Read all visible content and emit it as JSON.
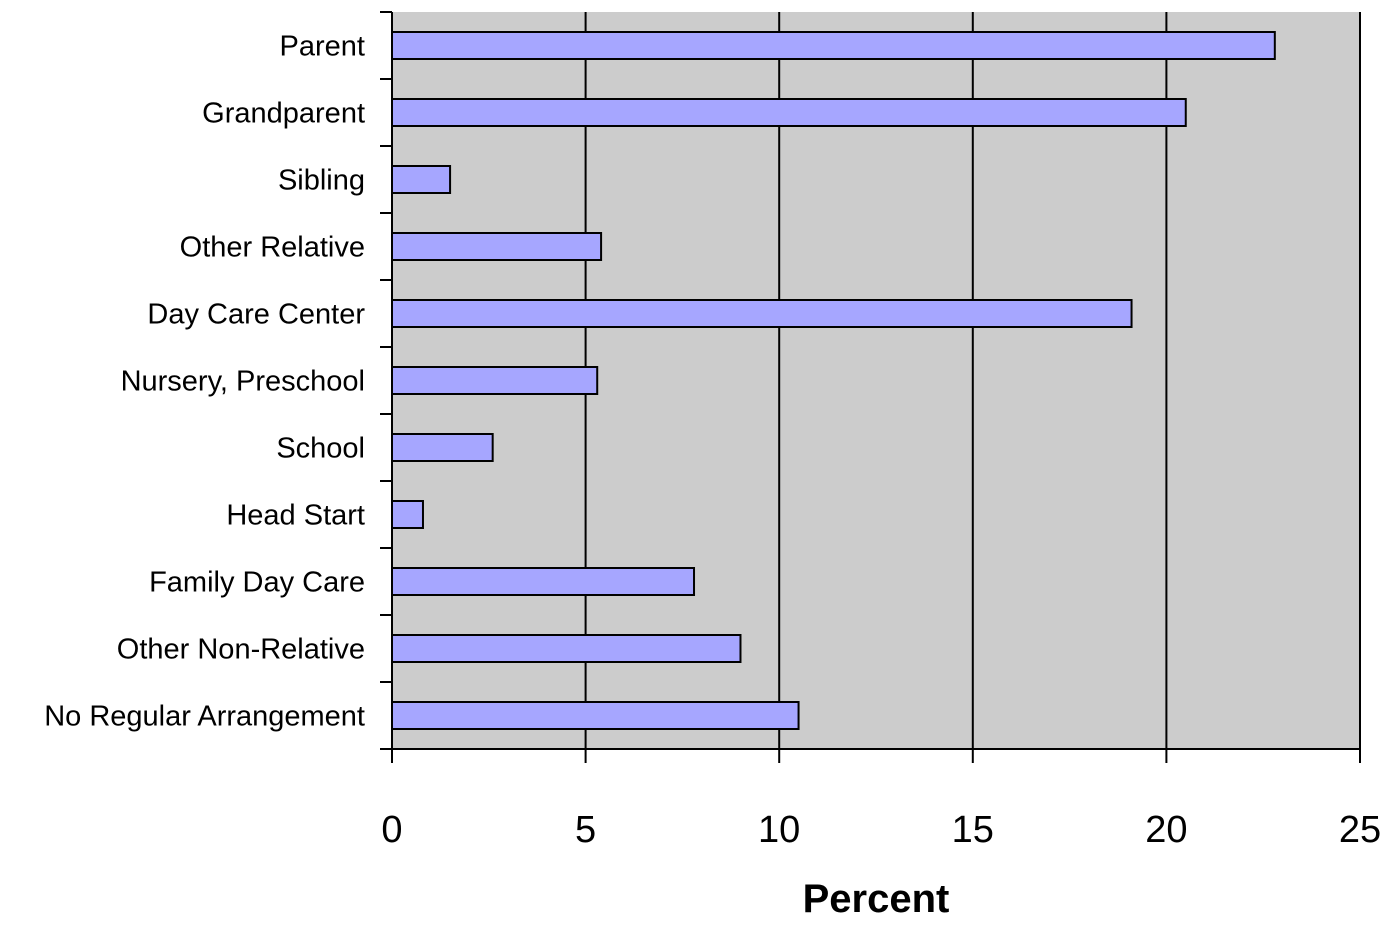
{
  "chart_data": {
    "type": "bar",
    "orientation": "horizontal",
    "categories": [
      "Parent",
      "Grandparent",
      "Sibling",
      "Other Relative",
      "Day Care Center",
      "Nursery, Preschool",
      "School",
      "Head Start",
      "Family Day Care",
      "Other Non-Relative",
      "No Regular Arrangement"
    ],
    "values": [
      22.8,
      20.5,
      1.5,
      5.4,
      19.1,
      5.3,
      2.6,
      0.8,
      7.8,
      9.0,
      10.5
    ],
    "xlabel": "Percent",
    "ylabel": "",
    "xlim": [
      0,
      25
    ],
    "xticks": [
      "0",
      "5",
      "10",
      "15",
      "20",
      "25"
    ],
    "grid": "vertical",
    "legend": "none",
    "colors": {
      "bar_fill": "#a6a6ff",
      "bar_stroke": "#000000",
      "plot_background": "#cccccc",
      "gridline": "#000000"
    }
  }
}
